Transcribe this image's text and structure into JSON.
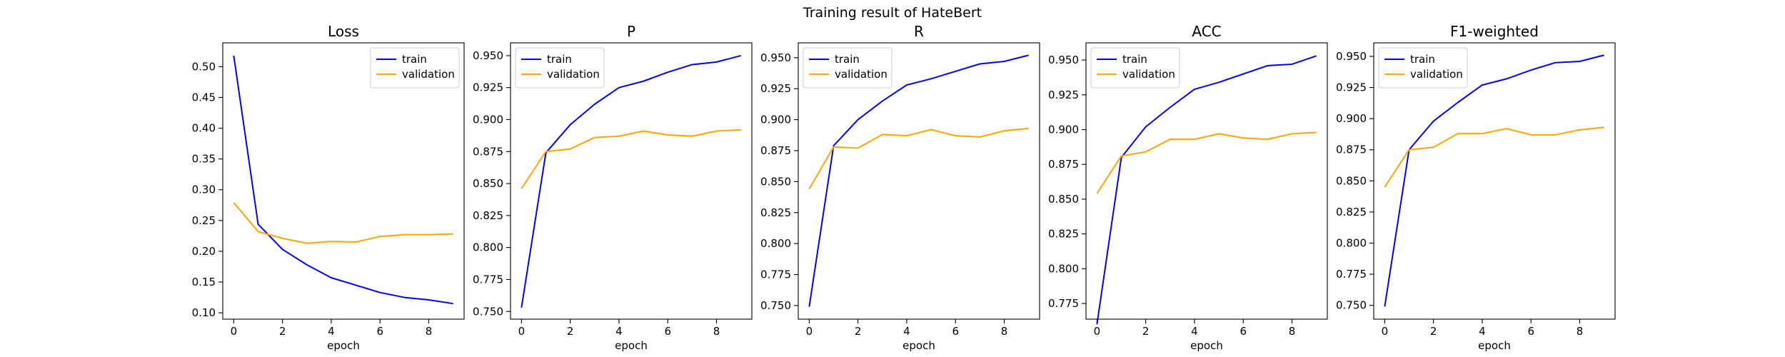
{
  "suptitle": "Training result of HateBert",
  "colors": {
    "train": "#0000ff",
    "validation": "#ffa500",
    "axes": "#000000",
    "legend_border": "#cccccc"
  },
  "chart_data": [
    {
      "type": "line",
      "title": "Loss",
      "xlabel": "epoch",
      "ylabel": "",
      "x": [
        0,
        1,
        2,
        3,
        4,
        5,
        6,
        7,
        8,
        9
      ],
      "xlim": [
        -0.45,
        9.45
      ],
      "xticks": [
        0,
        2,
        4,
        6,
        8
      ],
      "ylim": [
        0.0897,
        0.5387
      ],
      "yticks": [
        0.1,
        0.15,
        0.2,
        0.25,
        0.3,
        0.35,
        0.4,
        0.45,
        0.5
      ],
      "ytick_labels": [
        "0.10",
        "0.15",
        "0.20",
        "0.25",
        "0.30",
        "0.35",
        "0.40",
        "0.45",
        "0.50"
      ],
      "legend": "top-right",
      "grid": false,
      "series": [
        {
          "name": "train",
          "color": "#0000ff",
          "values": [
            0.518,
            0.244,
            0.203,
            0.178,
            0.157,
            0.145,
            0.133,
            0.125,
            0.121,
            0.115
          ]
        },
        {
          "name": "validation",
          "color": "#ffa500",
          "values": [
            0.279,
            0.232,
            0.221,
            0.213,
            0.216,
            0.215,
            0.224,
            0.227,
            0.227,
            0.228
          ]
        }
      ]
    },
    {
      "type": "line",
      "title": "P",
      "xlabel": "epoch",
      "ylabel": "",
      "x": [
        0,
        1,
        2,
        3,
        4,
        5,
        6,
        7,
        8,
        9
      ],
      "xlim": [
        -0.45,
        9.45
      ],
      "xticks": [
        0,
        2,
        4,
        6,
        8
      ],
      "ylim": [
        0.744,
        0.96
      ],
      "yticks": [
        0.75,
        0.775,
        0.8,
        0.825,
        0.85,
        0.875,
        0.9,
        0.925,
        0.95
      ],
      "ytick_labels": [
        "0.750",
        "0.775",
        "0.800",
        "0.825",
        "0.850",
        "0.875",
        "0.900",
        "0.925",
        "0.950"
      ],
      "legend": "top-left",
      "grid": false,
      "series": [
        {
          "name": "train",
          "color": "#0000ff",
          "values": [
            0.753,
            0.874,
            0.896,
            0.912,
            0.925,
            0.93,
            0.937,
            0.943,
            0.945,
            0.95
          ]
        },
        {
          "name": "validation",
          "color": "#ffa500",
          "values": [
            0.846,
            0.875,
            0.877,
            0.886,
            0.887,
            0.891,
            0.888,
            0.887,
            0.891,
            0.892
          ]
        }
      ]
    },
    {
      "type": "line",
      "title": "R",
      "xlabel": "epoch",
      "ylabel": "",
      "x": [
        0,
        1,
        2,
        3,
        4,
        5,
        6,
        7,
        8,
        9
      ],
      "xlim": [
        -0.45,
        9.45
      ],
      "xticks": [
        0,
        2,
        4,
        6,
        8
      ],
      "ylim": [
        0.739,
        0.962
      ],
      "yticks": [
        0.75,
        0.775,
        0.8,
        0.825,
        0.85,
        0.875,
        0.9,
        0.925,
        0.95
      ],
      "ytick_labels": [
        "0.750",
        "0.775",
        "0.800",
        "0.825",
        "0.850",
        "0.875",
        "0.900",
        "0.925",
        "0.950"
      ],
      "legend": "top-left",
      "grid": false,
      "series": [
        {
          "name": "train",
          "color": "#0000ff",
          "values": [
            0.749,
            0.879,
            0.9,
            0.915,
            0.928,
            0.933,
            0.939,
            0.945,
            0.947,
            0.952
          ]
        },
        {
          "name": "validation",
          "color": "#ffa500",
          "values": [
            0.844,
            0.878,
            0.877,
            0.888,
            0.887,
            0.892,
            0.887,
            0.886,
            0.891,
            0.893
          ]
        }
      ]
    },
    {
      "type": "line",
      "title": "ACC",
      "xlabel": "epoch",
      "ylabel": "",
      "x": [
        0,
        1,
        2,
        3,
        4,
        5,
        6,
        7,
        8,
        9
      ],
      "xlim": [
        -0.45,
        9.45
      ],
      "xticks": [
        0,
        2,
        4,
        6,
        8
      ],
      "ylim": [
        0.7637,
        0.9624
      ],
      "yticks": [
        0.775,
        0.8,
        0.825,
        0.85,
        0.875,
        0.9,
        0.925,
        0.95
      ],
      "ytick_labels": [
        "0.775",
        "0.800",
        "0.825",
        "0.850",
        "0.875",
        "0.900",
        "0.925",
        "0.950"
      ],
      "legend": "top-left",
      "grid": false,
      "series": [
        {
          "name": "train",
          "color": "#0000ff",
          "values": [
            0.76,
            0.88,
            0.902,
            0.916,
            0.929,
            0.934,
            0.94,
            0.946,
            0.947,
            0.953
          ]
        },
        {
          "name": "validation",
          "color": "#ffa500",
          "values": [
            0.854,
            0.881,
            0.884,
            0.893,
            0.893,
            0.897,
            0.894,
            0.893,
            0.897,
            0.898
          ]
        }
      ]
    },
    {
      "type": "line",
      "title": "F1-weighted",
      "xlabel": "epoch",
      "ylabel": "",
      "x": [
        0,
        1,
        2,
        3,
        4,
        5,
        6,
        7,
        8,
        9
      ],
      "xlim": [
        -0.45,
        9.45
      ],
      "xticks": [
        0,
        2,
        4,
        6,
        8
      ],
      "ylim": [
        0.7389,
        0.9609
      ],
      "yticks": [
        0.75,
        0.775,
        0.8,
        0.825,
        0.85,
        0.875,
        0.9,
        0.925,
        0.95
      ],
      "ytick_labels": [
        "0.750",
        "0.775",
        "0.800",
        "0.825",
        "0.850",
        "0.875",
        "0.900",
        "0.925",
        "0.950"
      ],
      "legend": "top-left",
      "grid": false,
      "series": [
        {
          "name": "train",
          "color": "#0000ff",
          "values": [
            0.749,
            0.875,
            0.898,
            0.913,
            0.927,
            0.932,
            0.939,
            0.945,
            0.946,
            0.951
          ]
        },
        {
          "name": "validation",
          "color": "#ffa500",
          "values": [
            0.845,
            0.875,
            0.877,
            0.888,
            0.888,
            0.892,
            0.887,
            0.887,
            0.891,
            0.893
          ]
        }
      ]
    }
  ]
}
